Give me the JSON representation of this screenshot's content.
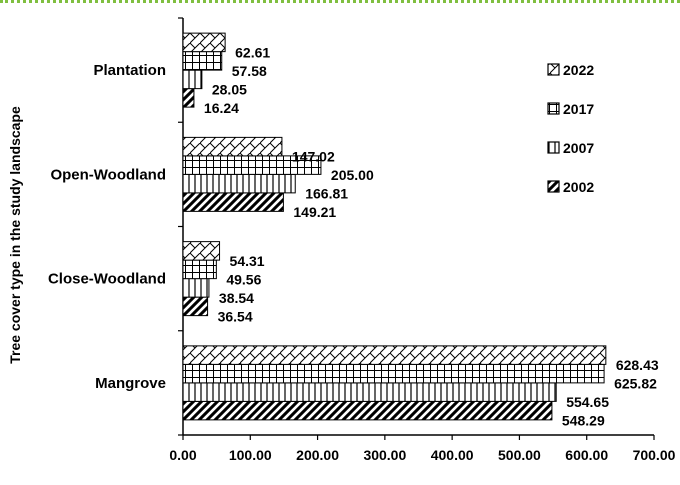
{
  "chart_data": {
    "type": "bar",
    "orientation": "horizontal",
    "categories": [
      "Mangrove",
      "Close-Woodland",
      "Open-Woodland",
      "Plantation"
    ],
    "series": [
      {
        "name": "2002",
        "pattern": "diagonal",
        "values": [
          548.29,
          36.54,
          149.21,
          16.24
        ]
      },
      {
        "name": "2007",
        "pattern": "vertical",
        "values": [
          554.65,
          38.54,
          166.81,
          28.05
        ]
      },
      {
        "name": "2017",
        "pattern": "grid",
        "values": [
          625.82,
          49.56,
          205.0,
          57.58
        ]
      },
      {
        "name": "2022",
        "pattern": "crosshatch",
        "values": [
          628.43,
          54.31,
          147.02,
          62.61
        ]
      }
    ],
    "xticks": [
      "0.00",
      "100.00",
      "200.00",
      "300.00",
      "400.00",
      "500.00",
      "600.00",
      "700.00"
    ],
    "xlim": [
      0,
      700
    ],
    "xlabel": "",
    "ylabel": "Tree cover type in the study landscape",
    "title": "",
    "legend_position": "right",
    "legend_order": [
      "2022",
      "2017",
      "2007",
      "2002"
    ],
    "grid": false,
    "colors": {
      "bar_stroke": "#000000",
      "frame_border": "#7fbf3f"
    }
  }
}
